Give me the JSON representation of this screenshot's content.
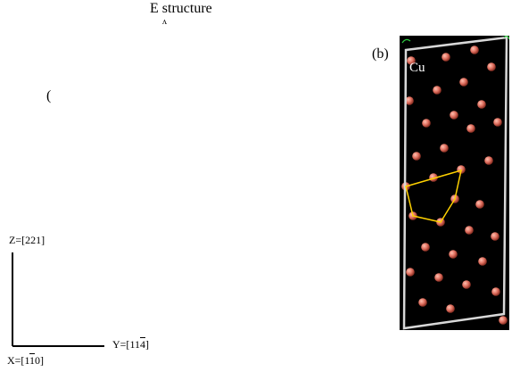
{
  "figure": {
    "title": "E structure",
    "title_fragment": "ʌ",
    "left_fragment": "(",
    "panel_label": "(b)",
    "element_label": "Cu"
  },
  "axes": {
    "z": {
      "prefix": "Z=[",
      "digits": "221",
      "suffix": "]"
    },
    "y": {
      "prefix": "Y=[",
      "d1": "11",
      "d2": "4",
      "suffix": "]"
    },
    "x": {
      "prefix": "X=[",
      "d1": "1",
      "d2": "1",
      "d3": "0",
      "suffix": "]"
    }
  },
  "colors": {
    "background": "#ffffff",
    "panel": "#000000",
    "frame": "#d8d8d8",
    "atom": "#e07060",
    "polygon": "#ffd200",
    "corner_marker": "#2ecc40"
  }
}
